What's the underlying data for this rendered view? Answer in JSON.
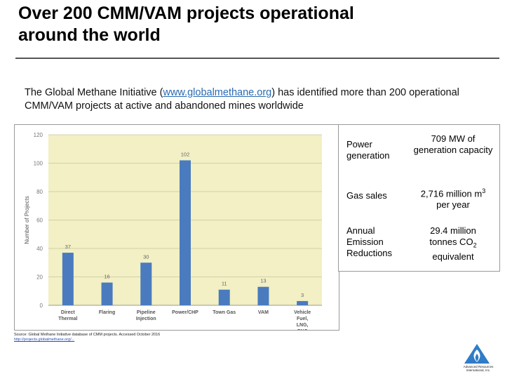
{
  "title": "Over 200 CMM/VAM projects operational around the world",
  "intro": {
    "before": "The Global Methane Initiative (",
    "link": "www.globalmethane.org",
    "after": ") has identified more than 200 operational CMM/VAM projects at active and abandoned mines worldwide"
  },
  "source": {
    "text": "Source: Global Methane Initiative database of CMM projects. Accessed October 2016",
    "link": "http://projects.globalmethane.org/..."
  },
  "stats": [
    {
      "label": "Power generation",
      "value": "709 MW of generation capacity"
    },
    {
      "label": "Gas sales",
      "value": "2,716 million m3 per year"
    },
    {
      "label": "Annual Emission Reductions",
      "value": "29.4 million tonnes CO2 equivalent"
    }
  ],
  "logo": {
    "name": "Advanced Resources International, Inc."
  },
  "colors": {
    "bar": "#4a7bbf",
    "plot_bg": "#f2f0c4",
    "rule": "#555555"
  },
  "chart_data": {
    "type": "bar",
    "categories": [
      "Direct Thermal",
      "Flaring",
      "Pipeline Injection",
      "Power/CHP",
      "Town Gas",
      "VAM",
      "Vehicle Fuel, LNG, CNG"
    ],
    "values": [
      37,
      16,
      30,
      102,
      11,
      13,
      3
    ],
    "ylabel": "Number of Projects",
    "ylim": [
      0,
      120
    ],
    "yticks": [
      0,
      20,
      40,
      60,
      80,
      100,
      120
    ],
    "grid": true
  }
}
